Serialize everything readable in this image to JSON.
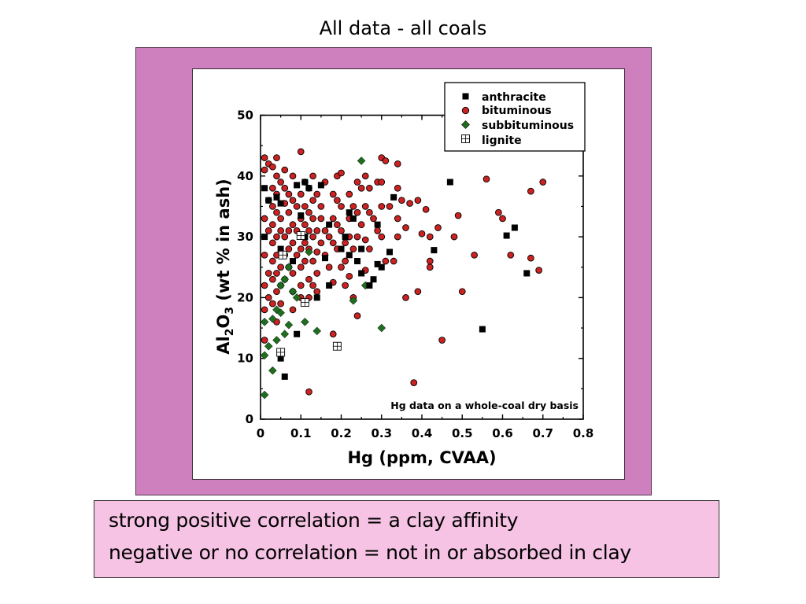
{
  "slide": {
    "title": "All data - all coals",
    "notes": [
      "strong positive correlation = a clay affinity",
      "negative or no correlation = not in or absorbed in clay"
    ]
  },
  "colors": {
    "frame": "#cd80bd",
    "note_box": "#f6c3e4",
    "anthracite": "#000000",
    "bituminous": "#cc2222",
    "subbituminous": "#1f6e1f",
    "lignite": "#ffffff"
  },
  "chart_data": {
    "type": "scatter",
    "title": "",
    "xlabel": "Hg (ppm, CVAA)",
    "ylabel_parts": [
      "Al",
      "2",
      "O",
      "3",
      " (wt % in ash)"
    ],
    "xlim": [
      0,
      0.8
    ],
    "ylim": [
      0,
      50
    ],
    "x_ticks": [
      0,
      0.1,
      0.2,
      0.3,
      0.4,
      0.5,
      0.6,
      0.7,
      0.8
    ],
    "x_tick_labels": [
      "0",
      "0.1",
      "0.2",
      "0.3",
      "0.4",
      "0.5",
      "0.6",
      "0.7",
      "0.8"
    ],
    "y_ticks": [
      0,
      10,
      20,
      30,
      40,
      50
    ],
    "y_tick_labels": [
      "0",
      "10",
      "20",
      "30",
      "40",
      "50"
    ],
    "grid": false,
    "legend_position": "top-right",
    "annotation": "Hg data on a whole-coal dry basis",
    "series": [
      {
        "name": "anthracite",
        "marker": "square",
        "color": "#000000",
        "points": [
          [
            0.01,
            38
          ],
          [
            0.01,
            30
          ],
          [
            0.02,
            36
          ],
          [
            0.04,
            36.5
          ],
          [
            0.05,
            35.5
          ],
          [
            0.05,
            28
          ],
          [
            0.06,
            7
          ],
          [
            0.05,
            10
          ],
          [
            0.08,
            26
          ],
          [
            0.09,
            14
          ],
          [
            0.09,
            38.5
          ],
          [
            0.1,
            33.5
          ],
          [
            0.11,
            39
          ],
          [
            0.12,
            38
          ],
          [
            0.11,
            30
          ],
          [
            0.14,
            20
          ],
          [
            0.15,
            38.5
          ],
          [
            0.16,
            26.5
          ],
          [
            0.17,
            22
          ],
          [
            0.17,
            32
          ],
          [
            0.2,
            28
          ],
          [
            0.21,
            30
          ],
          [
            0.22,
            27
          ],
          [
            0.22,
            34
          ],
          [
            0.23,
            33
          ],
          [
            0.24,
            26
          ],
          [
            0.25,
            28
          ],
          [
            0.25,
            24
          ],
          [
            0.27,
            22
          ],
          [
            0.28,
            23
          ],
          [
            0.29,
            32
          ],
          [
            0.29,
            25.5
          ],
          [
            0.3,
            25
          ],
          [
            0.32,
            27.5
          ],
          [
            0.33,
            36.5
          ],
          [
            0.43,
            27.8
          ],
          [
            0.47,
            39
          ],
          [
            0.55,
            14.8
          ],
          [
            0.61,
            30.2
          ],
          [
            0.63,
            31.5
          ],
          [
            0.66,
            24
          ]
        ]
      },
      {
        "name": "bituminous",
        "marker": "circle",
        "color": "#cc2222",
        "points": [
          [
            0.01,
            43
          ],
          [
            0.01,
            41
          ],
          [
            0.01,
            33
          ],
          [
            0.01,
            27
          ],
          [
            0.01,
            22
          ],
          [
            0.01,
            18
          ],
          [
            0.01,
            13
          ],
          [
            0.02,
            42
          ],
          [
            0.02,
            36
          ],
          [
            0.02,
            31
          ],
          [
            0.02,
            24
          ],
          [
            0.02,
            20
          ],
          [
            0.03,
            41.5
          ],
          [
            0.03,
            38
          ],
          [
            0.03,
            35
          ],
          [
            0.03,
            32
          ],
          [
            0.03,
            29
          ],
          [
            0.03,
            26
          ],
          [
            0.03,
            23
          ],
          [
            0.03,
            19
          ],
          [
            0.04,
            43
          ],
          [
            0.04,
            40
          ],
          [
            0.04,
            37
          ],
          [
            0.04,
            34
          ],
          [
            0.04,
            30
          ],
          [
            0.04,
            27
          ],
          [
            0.04,
            24
          ],
          [
            0.04,
            21
          ],
          [
            0.04,
            16
          ],
          [
            0.05,
            39
          ],
          [
            0.05,
            33
          ],
          [
            0.05,
            31
          ],
          [
            0.05,
            25
          ],
          [
            0.05,
            22
          ],
          [
            0.05,
            19
          ],
          [
            0.06,
            41
          ],
          [
            0.06,
            38
          ],
          [
            0.06,
            35.5
          ],
          [
            0.06,
            30
          ],
          [
            0.06,
            27
          ],
          [
            0.06,
            23
          ],
          [
            0.07,
            37
          ],
          [
            0.07,
            34
          ],
          [
            0.07,
            31
          ],
          [
            0.07,
            28
          ],
          [
            0.07,
            25
          ],
          [
            0.08,
            40
          ],
          [
            0.08,
            36
          ],
          [
            0.08,
            32
          ],
          [
            0.08,
            29
          ],
          [
            0.08,
            24
          ],
          [
            0.08,
            21
          ],
          [
            0.08,
            18
          ],
          [
            0.09,
            35
          ],
          [
            0.09,
            31
          ],
          [
            0.09,
            27
          ],
          [
            0.1,
            44
          ],
          [
            0.1,
            37
          ],
          [
            0.1,
            33
          ],
          [
            0.1,
            28
          ],
          [
            0.1,
            25
          ],
          [
            0.1,
            22
          ],
          [
            0.1,
            20
          ],
          [
            0.11,
            39
          ],
          [
            0.11,
            35
          ],
          [
            0.11,
            32
          ],
          [
            0.11,
            29
          ],
          [
            0.11,
            26
          ],
          [
            0.12,
            38
          ],
          [
            0.12,
            34
          ],
          [
            0.12,
            31
          ],
          [
            0.12,
            28
          ],
          [
            0.12,
            23
          ],
          [
            0.12,
            20
          ],
          [
            0.12,
            4.5
          ],
          [
            0.13,
            40
          ],
          [
            0.13,
            36
          ],
          [
            0.13,
            33
          ],
          [
            0.13,
            30
          ],
          [
            0.13,
            26
          ],
          [
            0.13,
            22
          ],
          [
            0.14,
            37
          ],
          [
            0.14,
            31
          ],
          [
            0.14,
            27.5
          ],
          [
            0.14,
            24
          ],
          [
            0.14,
            21
          ],
          [
            0.15,
            35
          ],
          [
            0.15,
            33
          ],
          [
            0.15,
            29
          ],
          [
            0.16,
            39
          ],
          [
            0.16,
            31
          ],
          [
            0.16,
            27
          ],
          [
            0.17,
            30
          ],
          [
            0.17,
            25
          ],
          [
            0.18,
            37
          ],
          [
            0.18,
            33
          ],
          [
            0.18,
            29
          ],
          [
            0.18,
            22.5
          ],
          [
            0.18,
            14
          ],
          [
            0.19,
            40
          ],
          [
            0.19,
            36
          ],
          [
            0.19,
            32
          ],
          [
            0.19,
            28
          ],
          [
            0.2,
            40.5
          ],
          [
            0.2,
            35
          ],
          [
            0.2,
            31
          ],
          [
            0.2,
            25
          ],
          [
            0.21,
            29
          ],
          [
            0.21,
            26
          ],
          [
            0.21,
            22
          ],
          [
            0.22,
            37
          ],
          [
            0.22,
            33
          ],
          [
            0.22,
            30
          ],
          [
            0.22,
            23.5
          ],
          [
            0.23,
            35
          ],
          [
            0.23,
            28
          ],
          [
            0.23,
            20
          ],
          [
            0.24,
            39
          ],
          [
            0.24,
            34
          ],
          [
            0.24,
            30
          ],
          [
            0.24,
            17
          ],
          [
            0.25,
            38
          ],
          [
            0.25,
            32
          ],
          [
            0.26,
            40
          ],
          [
            0.26,
            35
          ],
          [
            0.26,
            29.5
          ],
          [
            0.26,
            24.5
          ],
          [
            0.27,
            38
          ],
          [
            0.27,
            34
          ],
          [
            0.27,
            28
          ],
          [
            0.28,
            33
          ],
          [
            0.29,
            39
          ],
          [
            0.29,
            31
          ],
          [
            0.3,
            43
          ],
          [
            0.3,
            39
          ],
          [
            0.3,
            35
          ],
          [
            0.3,
            30
          ],
          [
            0.31,
            42.5
          ],
          [
            0.31,
            26
          ],
          [
            0.32,
            35
          ],
          [
            0.33,
            26
          ],
          [
            0.34,
            42
          ],
          [
            0.34,
            38
          ],
          [
            0.34,
            33
          ],
          [
            0.34,
            30
          ],
          [
            0.35,
            36
          ],
          [
            0.36,
            31.5
          ],
          [
            0.36,
            20
          ],
          [
            0.37,
            35.5
          ],
          [
            0.38,
            6
          ],
          [
            0.39,
            36
          ],
          [
            0.39,
            21
          ],
          [
            0.4,
            30.5
          ],
          [
            0.41,
            34.5
          ],
          [
            0.42,
            25
          ],
          [
            0.42,
            30
          ],
          [
            0.42,
            26
          ],
          [
            0.44,
            31.5
          ],
          [
            0.45,
            13
          ],
          [
            0.48,
            30
          ],
          [
            0.49,
            33.5
          ],
          [
            0.5,
            21
          ],
          [
            0.53,
            27
          ],
          [
            0.56,
            39.5
          ],
          [
            0.59,
            34
          ],
          [
            0.6,
            33
          ],
          [
            0.62,
            27
          ],
          [
            0.67,
            37.5
          ],
          [
            0.67,
            26.5
          ],
          [
            0.69,
            24.5
          ],
          [
            0.7,
            39
          ]
        ]
      },
      {
        "name": "subbituminous",
        "marker": "diamond",
        "color": "#1f6e1f",
        "points": [
          [
            0.01,
            4
          ],
          [
            0.01,
            10.5
          ],
          [
            0.01,
            16
          ],
          [
            0.02,
            12
          ],
          [
            0.03,
            8
          ],
          [
            0.03,
            16.5
          ],
          [
            0.04,
            13
          ],
          [
            0.04,
            18
          ],
          [
            0.05,
            17.5
          ],
          [
            0.05,
            22
          ],
          [
            0.06,
            14
          ],
          [
            0.06,
            23
          ],
          [
            0.07,
            25
          ],
          [
            0.07,
            15.5
          ],
          [
            0.08,
            21
          ],
          [
            0.09,
            20
          ],
          [
            0.11,
            16
          ],
          [
            0.12,
            27.5
          ],
          [
            0.14,
            14.5
          ],
          [
            0.23,
            19.5
          ],
          [
            0.25,
            42.5
          ],
          [
            0.26,
            22
          ],
          [
            0.3,
            15
          ]
        ]
      },
      {
        "name": "lignite",
        "marker": "crossed-square",
        "color": "#ffffff",
        "points": [
          [
            0.05,
            11
          ],
          [
            0.055,
            27
          ],
          [
            0.1,
            30.2
          ],
          [
            0.11,
            19.2
          ],
          [
            0.19,
            12
          ]
        ]
      }
    ]
  }
}
